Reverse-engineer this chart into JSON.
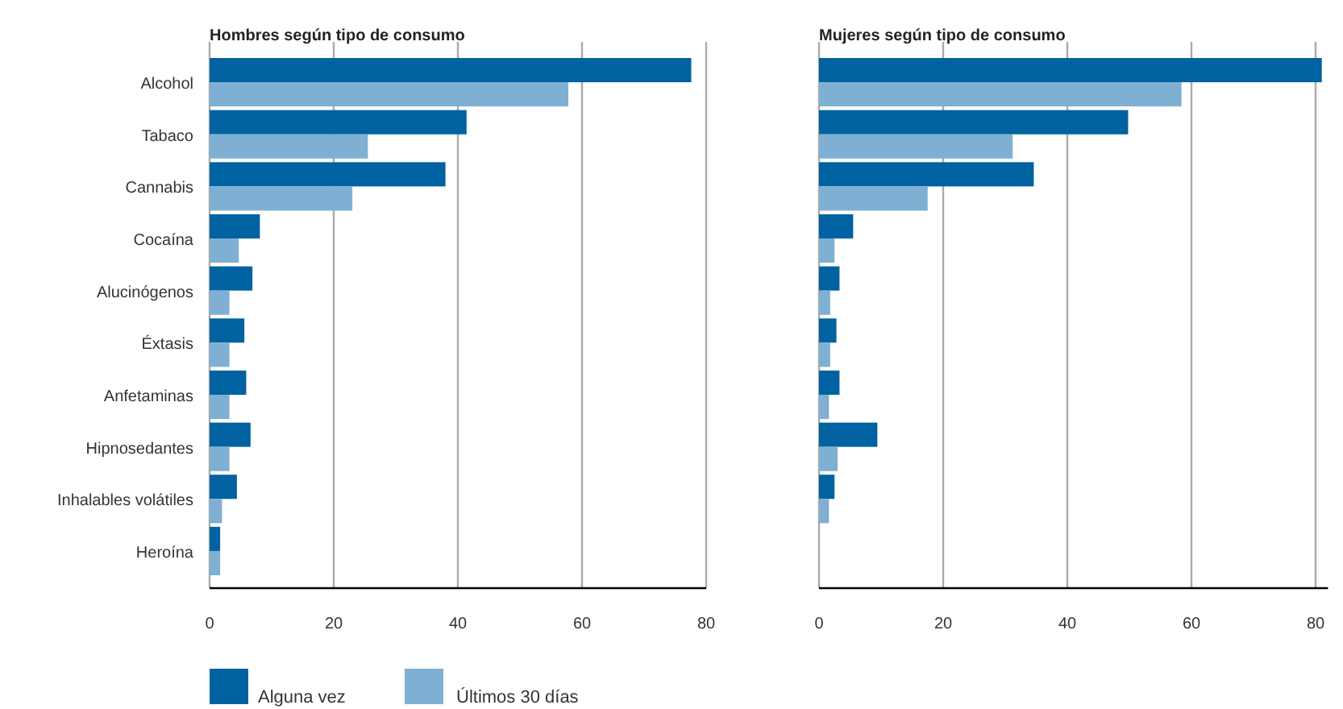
{
  "chart_data": [
    {
      "type": "bar",
      "orientation": "horizontal",
      "title": "Hombres según tipo de consumo",
      "categories": [
        "Alcohol",
        "Tabaco",
        "Cannabis",
        "Cocaína",
        "Alucinógenos",
        "Éxtasis",
        "Anfetaminas",
        "Hipnosedantes",
        "Inhalables volátiles",
        "Heroína"
      ],
      "series": [
        {
          "name": "Alguna vez",
          "color": "#0062a0",
          "values": [
            77.6,
            41.4,
            38.0,
            8.1,
            6.9,
            5.6,
            5.9,
            6.6,
            4.4,
            1.7
          ]
        },
        {
          "name": "Últimos 30 días",
          "color": "#7fb0d3",
          "values": [
            57.8,
            25.5,
            23.0,
            4.7,
            3.2,
            3.2,
            3.2,
            3.2,
            2.0,
            1.7
          ]
        }
      ],
      "xlim": [
        0,
        80
      ],
      "xticks": [
        0,
        20,
        40,
        60,
        80
      ],
      "grid": "x",
      "legend": "bottom left"
    },
    {
      "type": "bar",
      "orientation": "horizontal",
      "title": "Mujeres según tipo de consumo",
      "categories": [
        null,
        null,
        null,
        null,
        null,
        null,
        null,
        null,
        null,
        null
      ],
      "series": [
        {
          "color": "#0062a0",
          "values": [
            81,
            49.8,
            34.6,
            5.5,
            3.3,
            2.8,
            3.3,
            9.4,
            2.5,
            null
          ]
        },
        {
          "color": "#7fb0d3",
          "values": [
            58.4,
            31.2,
            17.5,
            2.5,
            1.8,
            1.8,
            1.6,
            3.0,
            1.6,
            null
          ]
        }
      ],
      "xlim": [
        0,
        82
      ],
      "xticks": [
        0,
        20,
        40,
        60,
        80
      ],
      "grid": "x",
      "tick_labels": "x"
    }
  ]
}
